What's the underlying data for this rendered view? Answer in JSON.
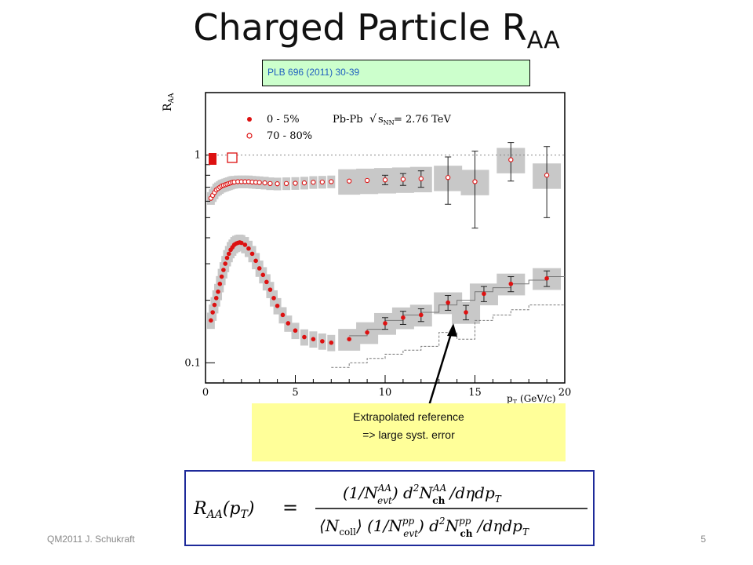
{
  "slide": {
    "title_main": "Charged Particle R",
    "title_sub": "AA",
    "reference": "PLB 696 (2011) 30-39",
    "note_line1": "Extrapolated reference",
    "note_line2": "=> large syst. error",
    "footer": "QM2011 J. Schukraft",
    "page": "5"
  },
  "formula": {
    "lhs": "R",
    "lhs_sub": "AA",
    "lhs_arg": "(p",
    "lhs_arg_sub": "T",
    "lhs_close": ")",
    "equals": "=",
    "num_text": "(1/N",
    "num_sup1": "AA",
    "num_sub1": "evt",
    "num_mid": ") d",
    "num_sup2": "2",
    "num_n": "N",
    "num_sup3": "AA",
    "num_sub3": "ch",
    "num_end": " /dηdp",
    "num_end_sub": "T",
    "den_text": "⟨N",
    "den_sub1": "coll",
    "den_mid": "⟩ (1/N",
    "den_sup2": "pp",
    "den_sub2": "evt",
    "den_mid2": ") d",
    "den_sup3": "2",
    "den_n": "N",
    "den_sup4": "pp",
    "den_sub4": "ch",
    "den_end": " /dηdp",
    "den_end_sub": "T"
  },
  "chart_data": {
    "type": "scatter",
    "xlabel": "p",
    "xlabel_sub": "T",
    "xlabel_unit": "(GeV/c)",
    "ylabel": "R",
    "ylabel_sub": "AA",
    "x_range": [
      0,
      20
    ],
    "y_range": [
      0.08,
      2.0
    ],
    "y_scale": "log",
    "x_ticks": [
      0,
      5,
      10,
      15,
      20
    ],
    "y_ticks": [
      0.1,
      1
    ],
    "legend_title": "Pb-Pb",
    "legend_energy": "= 2.76 TeV",
    "legend_position": "top-left",
    "series": [
      {
        "name": "0 - 5%",
        "marker": "filled-circle",
        "color": "#dd1111",
        "points": [
          [
            0.3,
            0.16
          ],
          [
            0.4,
            0.175
          ],
          [
            0.5,
            0.19
          ],
          [
            0.6,
            0.205
          ],
          [
            0.7,
            0.22
          ],
          [
            0.8,
            0.24
          ],
          [
            0.9,
            0.26
          ],
          [
            1.0,
            0.28
          ],
          [
            1.1,
            0.3
          ],
          [
            1.2,
            0.32
          ],
          [
            1.3,
            0.335
          ],
          [
            1.4,
            0.35
          ],
          [
            1.5,
            0.36
          ],
          [
            1.6,
            0.37
          ],
          [
            1.7,
            0.375
          ],
          [
            1.8,
            0.378
          ],
          [
            1.9,
            0.38
          ],
          [
            2.0,
            0.378
          ],
          [
            2.2,
            0.37
          ],
          [
            2.4,
            0.355
          ],
          [
            2.6,
            0.335
          ],
          [
            2.8,
            0.31
          ],
          [
            3.0,
            0.285
          ],
          [
            3.2,
            0.265
          ],
          [
            3.4,
            0.245
          ],
          [
            3.6,
            0.225
          ],
          [
            3.8,
            0.205
          ],
          [
            4.0,
            0.188
          ],
          [
            4.3,
            0.17
          ],
          [
            4.6,
            0.155
          ],
          [
            5.0,
            0.143
          ],
          [
            5.5,
            0.133
          ],
          [
            6.0,
            0.13
          ],
          [
            6.5,
            0.127
          ],
          [
            7.0,
            0.125
          ],
          [
            8.0,
            0.13
          ],
          [
            9.0,
            0.14
          ],
          [
            10.0,
            0.155
          ],
          [
            11.0,
            0.165
          ],
          [
            12.0,
            0.17
          ],
          [
            13.5,
            0.195
          ],
          [
            14.5,
            0.175
          ],
          [
            15.5,
            0.215
          ],
          [
            17.0,
            0.24
          ],
          [
            19.0,
            0.255
          ]
        ],
        "errors": [
          [
            10.0,
            0.01
          ],
          [
            11.0,
            0.012
          ],
          [
            12.0,
            0.012
          ],
          [
            13.5,
            0.016
          ],
          [
            14.5,
            0.014
          ],
          [
            15.5,
            0.018
          ],
          [
            17.0,
            0.02
          ],
          [
            19.0,
            0.022
          ]
        ]
      },
      {
        "name": "70 - 80%",
        "marker": "open-circle",
        "color": "#dd1111",
        "points": [
          [
            0.3,
            0.62
          ],
          [
            0.4,
            0.64
          ],
          [
            0.5,
            0.66
          ],
          [
            0.6,
            0.68
          ],
          [
            0.7,
            0.69
          ],
          [
            0.8,
            0.7
          ],
          [
            0.9,
            0.71
          ],
          [
            1.0,
            0.715
          ],
          [
            1.1,
            0.72
          ],
          [
            1.2,
            0.725
          ],
          [
            1.3,
            0.73
          ],
          [
            1.4,
            0.735
          ],
          [
            1.5,
            0.74
          ],
          [
            1.6,
            0.742
          ],
          [
            1.8,
            0.745
          ],
          [
            2.0,
            0.745
          ],
          [
            2.2,
            0.745
          ],
          [
            2.4,
            0.745
          ],
          [
            2.6,
            0.742
          ],
          [
            2.8,
            0.74
          ],
          [
            3.0,
            0.738
          ],
          [
            3.3,
            0.735
          ],
          [
            3.6,
            0.73
          ],
          [
            4.0,
            0.728
          ],
          [
            4.5,
            0.73
          ],
          [
            5.0,
            0.732
          ],
          [
            5.5,
            0.735
          ],
          [
            6.0,
            0.74
          ],
          [
            6.5,
            0.742
          ],
          [
            7.0,
            0.745
          ],
          [
            8.0,
            0.75
          ],
          [
            9.0,
            0.755
          ],
          [
            10.0,
            0.76
          ],
          [
            11.0,
            0.765
          ],
          [
            12.0,
            0.77
          ],
          [
            13.5,
            0.78
          ],
          [
            15.0,
            0.745
          ],
          [
            17.0,
            0.95
          ],
          [
            19.0,
            0.8
          ]
        ],
        "errors": [
          [
            10.0,
            0.04
          ],
          [
            11.0,
            0.05
          ],
          [
            12.0,
            0.07
          ],
          [
            13.5,
            0.2
          ],
          [
            15.0,
            0.3
          ],
          [
            17.0,
            0.2
          ],
          [
            19.0,
            0.3
          ]
        ]
      }
    ],
    "reference_line": 1.0,
    "ncoll_norm": {
      "central_value": 1.0,
      "peripheral_value": 1.0
    }
  }
}
